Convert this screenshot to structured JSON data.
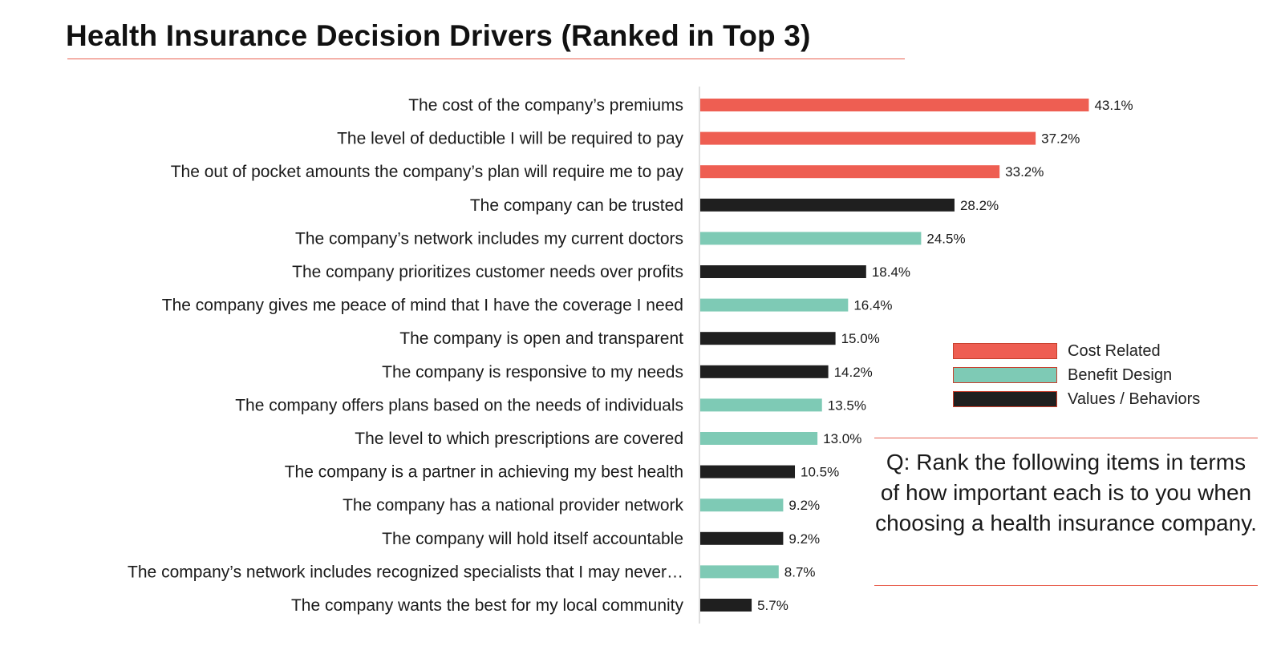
{
  "page": {
    "title": "Health Insurance Decision Drivers (Ranked in Top 3)"
  },
  "colors": {
    "cost": "#ee5e52",
    "benefit": "#7ecab5",
    "values": "#1f1f1f",
    "accent_rule": "#e8604f"
  },
  "legend": [
    {
      "key": "cost",
      "label": "Cost Related"
    },
    {
      "key": "benefit",
      "label": "Benefit Design"
    },
    {
      "key": "values",
      "label": "Values / Behaviors"
    }
  ],
  "question": "Q: Rank the following items in terms of how important each is to you when choosing a health insurance company.",
  "chart_data": {
    "type": "bar",
    "orientation": "horizontal",
    "title": "Health Insurance Decision Drivers (Ranked in Top 3)",
    "xlim": [
      0,
      50
    ],
    "grid": false,
    "legend_position": "right",
    "value_suffix": "%",
    "categories": [
      "The cost of the company’s premiums",
      "The level of deductible I will be required to pay",
      "The  out of pocket amounts the company’s plan will require me to pay",
      "The company can be trusted",
      "The company’s network includes my current doctors",
      "The company prioritizes customer needs over profits",
      "The company gives me peace of mind that I have the coverage I need",
      "The company is open and transparent",
      "The company is responsive to my needs",
      "The company offers plans based on the needs of individuals",
      "The level to which prescriptions are covered",
      "The company is a partner in achieving my best health",
      "The company has a national provider network",
      "The company will hold itself accountable",
      "The company’s network includes recognized specialists that I may never…",
      "The company wants the best for my local community"
    ],
    "values": [
      43.1,
      37.2,
      33.2,
      28.2,
      24.5,
      18.4,
      16.4,
      15.0,
      14.2,
      13.5,
      13.0,
      10.5,
      9.2,
      9.2,
      8.7,
      5.7
    ],
    "value_labels": [
      "43.1%",
      "37.2%",
      "33.2%",
      "28.2%",
      "24.5%",
      "18.4%",
      "16.4%",
      "15.0%",
      "14.2%",
      "13.5%",
      "13.0%",
      "10.5%",
      "9.2%",
      "9.2%",
      "8.7%",
      "5.7%"
    ],
    "groups": [
      "cost",
      "cost",
      "cost",
      "values",
      "benefit",
      "values",
      "benefit",
      "values",
      "values",
      "benefit",
      "benefit",
      "values",
      "benefit",
      "values",
      "benefit",
      "values"
    ]
  }
}
